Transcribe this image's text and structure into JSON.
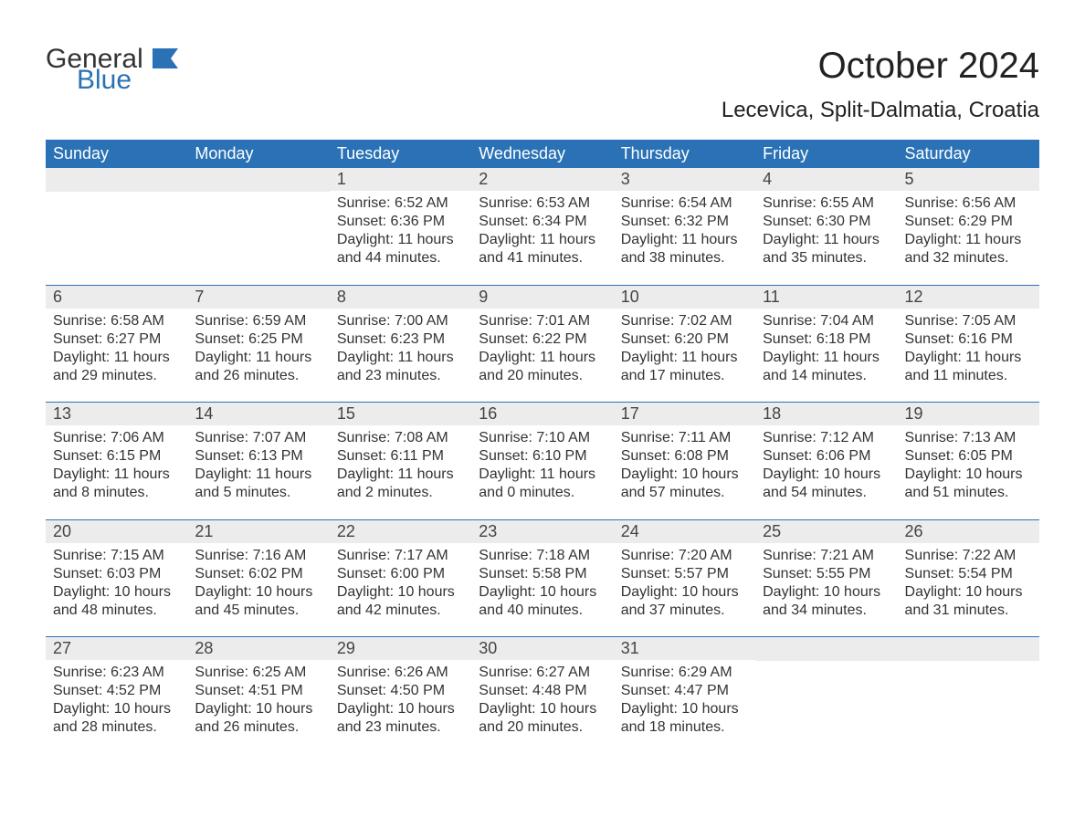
{
  "brand": {
    "text_general": "General",
    "text_blue": "Blue",
    "icon_color": "#2a72b5"
  },
  "title": "October 2024",
  "subtitle": "Lecevica, Split-Dalmatia, Croatia",
  "colors": {
    "header_bg": "#2a72b5",
    "header_text": "#ffffff",
    "daynum_bg": "#ececec",
    "body_text": "#333333",
    "page_bg": "#ffffff",
    "week_border": "#2a72b5"
  },
  "typography": {
    "title_fontsize": 40,
    "subtitle_fontsize": 24,
    "header_fontsize": 18,
    "daynum_fontsize": 18,
    "body_fontsize": 16,
    "logo_fontsize": 30
  },
  "day_headers": [
    "Sunday",
    "Monday",
    "Tuesday",
    "Wednesday",
    "Thursday",
    "Friday",
    "Saturday"
  ],
  "labels": {
    "sunrise": "Sunrise: ",
    "sunset": "Sunset: ",
    "daylight": "Daylight: "
  },
  "weeks": [
    [
      {
        "empty": true
      },
      {
        "empty": true
      },
      {
        "day": "1",
        "sunrise": "6:52 AM",
        "sunset": "6:36 PM",
        "daylight": "11 hours and 44 minutes."
      },
      {
        "day": "2",
        "sunrise": "6:53 AM",
        "sunset": "6:34 PM",
        "daylight": "11 hours and 41 minutes."
      },
      {
        "day": "3",
        "sunrise": "6:54 AM",
        "sunset": "6:32 PM",
        "daylight": "11 hours and 38 minutes."
      },
      {
        "day": "4",
        "sunrise": "6:55 AM",
        "sunset": "6:30 PM",
        "daylight": "11 hours and 35 minutes."
      },
      {
        "day": "5",
        "sunrise": "6:56 AM",
        "sunset": "6:29 PM",
        "daylight": "11 hours and 32 minutes."
      }
    ],
    [
      {
        "day": "6",
        "sunrise": "6:58 AM",
        "sunset": "6:27 PM",
        "daylight": "11 hours and 29 minutes."
      },
      {
        "day": "7",
        "sunrise": "6:59 AM",
        "sunset": "6:25 PM",
        "daylight": "11 hours and 26 minutes."
      },
      {
        "day": "8",
        "sunrise": "7:00 AM",
        "sunset": "6:23 PM",
        "daylight": "11 hours and 23 minutes."
      },
      {
        "day": "9",
        "sunrise": "7:01 AM",
        "sunset": "6:22 PM",
        "daylight": "11 hours and 20 minutes."
      },
      {
        "day": "10",
        "sunrise": "7:02 AM",
        "sunset": "6:20 PM",
        "daylight": "11 hours and 17 minutes."
      },
      {
        "day": "11",
        "sunrise": "7:04 AM",
        "sunset": "6:18 PM",
        "daylight": "11 hours and 14 minutes."
      },
      {
        "day": "12",
        "sunrise": "7:05 AM",
        "sunset": "6:16 PM",
        "daylight": "11 hours and 11 minutes."
      }
    ],
    [
      {
        "day": "13",
        "sunrise": "7:06 AM",
        "sunset": "6:15 PM",
        "daylight": "11 hours and 8 minutes."
      },
      {
        "day": "14",
        "sunrise": "7:07 AM",
        "sunset": "6:13 PM",
        "daylight": "11 hours and 5 minutes."
      },
      {
        "day": "15",
        "sunrise": "7:08 AM",
        "sunset": "6:11 PM",
        "daylight": "11 hours and 2 minutes."
      },
      {
        "day": "16",
        "sunrise": "7:10 AM",
        "sunset": "6:10 PM",
        "daylight": "11 hours and 0 minutes."
      },
      {
        "day": "17",
        "sunrise": "7:11 AM",
        "sunset": "6:08 PM",
        "daylight": "10 hours and 57 minutes."
      },
      {
        "day": "18",
        "sunrise": "7:12 AM",
        "sunset": "6:06 PM",
        "daylight": "10 hours and 54 minutes."
      },
      {
        "day": "19",
        "sunrise": "7:13 AM",
        "sunset": "6:05 PM",
        "daylight": "10 hours and 51 minutes."
      }
    ],
    [
      {
        "day": "20",
        "sunrise": "7:15 AM",
        "sunset": "6:03 PM",
        "daylight": "10 hours and 48 minutes."
      },
      {
        "day": "21",
        "sunrise": "7:16 AM",
        "sunset": "6:02 PM",
        "daylight": "10 hours and 45 minutes."
      },
      {
        "day": "22",
        "sunrise": "7:17 AM",
        "sunset": "6:00 PM",
        "daylight": "10 hours and 42 minutes."
      },
      {
        "day": "23",
        "sunrise": "7:18 AM",
        "sunset": "5:58 PM",
        "daylight": "10 hours and 40 minutes."
      },
      {
        "day": "24",
        "sunrise": "7:20 AM",
        "sunset": "5:57 PM",
        "daylight": "10 hours and 37 minutes."
      },
      {
        "day": "25",
        "sunrise": "7:21 AM",
        "sunset": "5:55 PM",
        "daylight": "10 hours and 34 minutes."
      },
      {
        "day": "26",
        "sunrise": "7:22 AM",
        "sunset": "5:54 PM",
        "daylight": "10 hours and 31 minutes."
      }
    ],
    [
      {
        "day": "27",
        "sunrise": "6:23 AM",
        "sunset": "4:52 PM",
        "daylight": "10 hours and 28 minutes."
      },
      {
        "day": "28",
        "sunrise": "6:25 AM",
        "sunset": "4:51 PM",
        "daylight": "10 hours and 26 minutes."
      },
      {
        "day": "29",
        "sunrise": "6:26 AM",
        "sunset": "4:50 PM",
        "daylight": "10 hours and 23 minutes."
      },
      {
        "day": "30",
        "sunrise": "6:27 AM",
        "sunset": "4:48 PM",
        "daylight": "10 hours and 20 minutes."
      },
      {
        "day": "31",
        "sunrise": "6:29 AM",
        "sunset": "4:47 PM",
        "daylight": "10 hours and 18 minutes."
      },
      {
        "empty": true
      },
      {
        "empty": true
      }
    ]
  ]
}
